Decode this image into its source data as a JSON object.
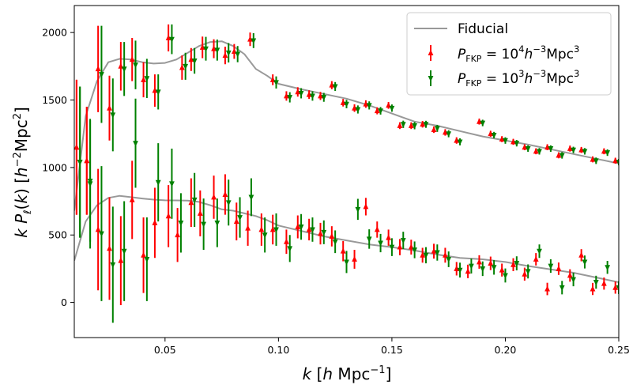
{
  "chart_data": {
    "type": "scatter",
    "xlabel": "k [h Mpc−1]",
    "ylabel": "k Pℓ(k) [h−2Mpc2]",
    "xlim": [
      0.01,
      0.25
    ],
    "ylim": [
      -260,
      2200
    ],
    "xticks": [
      0.05,
      0.1,
      0.15,
      0.2,
      0.25
    ],
    "xtick_labels": [
      "0.05",
      "0.10",
      "0.15",
      "0.20",
      "0.25"
    ],
    "yticks": [
      0,
      500,
      1000,
      1500,
      2000
    ],
    "ytick_labels": [
      "0",
      "500",
      "1000",
      "1500",
      "2000"
    ],
    "grid": false,
    "legend_position": "top-right",
    "colors": {
      "fiducial": "#999999",
      "series1": "#ff0000",
      "series2": "#008000"
    },
    "fiducial": {
      "name": "Fiducial",
      "monopole": {
        "x": [
          0.01,
          0.015,
          0.02,
          0.025,
          0.03,
          0.035,
          0.04,
          0.045,
          0.05,
          0.055,
          0.06,
          0.065,
          0.07,
          0.075,
          0.08,
          0.085,
          0.09,
          0.095,
          0.1,
          0.11,
          0.12,
          0.13,
          0.14,
          0.15,
          0.16,
          0.17,
          0.18,
          0.19,
          0.2,
          0.21,
          0.22,
          0.23,
          0.24,
          0.25
        ],
        "y": [
          680,
          1380,
          1640,
          1780,
          1805,
          1800,
          1780,
          1770,
          1775,
          1800,
          1850,
          1900,
          1930,
          1935,
          1900,
          1840,
          1730,
          1680,
          1620,
          1580,
          1545,
          1510,
          1460,
          1400,
          1340,
          1310,
          1270,
          1230,
          1200,
          1170,
          1135,
          1100,
          1065,
          1030
        ]
      },
      "quadrupole": {
        "x": [
          0.01,
          0.015,
          0.02,
          0.025,
          0.03,
          0.035,
          0.04,
          0.045,
          0.05,
          0.055,
          0.06,
          0.065,
          0.07,
          0.075,
          0.08,
          0.085,
          0.09,
          0.095,
          0.1,
          0.11,
          0.12,
          0.13,
          0.14,
          0.15,
          0.16,
          0.17,
          0.18,
          0.19,
          0.2,
          0.21,
          0.22,
          0.23,
          0.24,
          0.25
        ],
        "y": [
          310,
          600,
          720,
          775,
          790,
          780,
          770,
          762,
          757,
          756,
          755,
          745,
          720,
          690,
          680,
          660,
          640,
          610,
          570,
          530,
          490,
          460,
          430,
          410,
          385,
          355,
          330,
          320,
          300,
          270,
          245,
          220,
          185,
          150
        ]
      }
    },
    "series": [
      {
        "name": "P_FKP = 10^4 h^-3 Mpc^3",
        "monopole": {
          "x": [
            0.011,
            0.0155,
            0.0205,
            0.0255,
            0.0305,
            0.0355,
            0.0405,
            0.0455,
            0.0515,
            0.0575,
            0.0615,
            0.0665,
            0.0715,
            0.0765,
            0.0805,
            0.0875,
            0.0975,
            0.1035,
            0.1085,
            0.1135,
            0.1185,
            0.1235,
            0.1285,
            0.1335,
            0.1385,
            0.1435,
            0.1485,
            0.1535,
            0.1585,
            0.1635,
            0.1685,
            0.1735,
            0.1785,
            0.1885,
            0.1935,
            0.1985,
            0.2035,
            0.2085,
            0.2135,
            0.2185,
            0.2235,
            0.2285,
            0.2335,
            0.2385,
            0.2435,
            0.2485
          ],
          "y": [
            1150,
            1050,
            1730,
            1440,
            1750,
            1800,
            1650,
            1570,
            1960,
            1740,
            1800,
            1890,
            1880,
            1830,
            1860,
            1950,
            1650,
            1530,
            1560,
            1540,
            1530,
            1610,
            1480,
            1440,
            1470,
            1420,
            1460,
            1310,
            1310,
            1320,
            1280,
            1260,
            1200,
            1340,
            1250,
            1210,
            1190,
            1150,
            1120,
            1150,
            1090,
            1140,
            1130,
            1060,
            1120,
            1050
          ],
          "err": [
            500,
            400,
            320,
            240,
            180,
            160,
            130,
            120,
            100,
            90,
            85,
            80,
            70,
            65,
            55,
            50,
            40,
            35,
            35,
            32,
            30,
            30,
            28,
            28,
            28,
            26,
            25,
            25,
            25,
            24,
            24,
            24,
            24,
            22,
            22,
            22,
            22,
            22,
            22,
            22,
            22,
            22,
            22,
            22,
            22,
            22
          ]
        },
        "quadrupole": {
          "x": [
            0.011,
            0.0155,
            0.0205,
            0.0255,
            0.0305,
            0.0355,
            0.0405,
            0.0455,
            0.0515,
            0.0555,
            0.0615,
            0.0655,
            0.0715,
            0.0765,
            0.0815,
            0.0865,
            0.0925,
            0.0975,
            0.1035,
            0.1085,
            0.1135,
            0.1185,
            0.1235,
            0.1285,
            0.1335,
            0.1385,
            0.1435,
            0.1485,
            0.1535,
            0.1585,
            0.1635,
            0.1685,
            0.1735,
            0.1785,
            0.1835,
            0.1885,
            0.1935,
            0.1985,
            0.2035,
            0.2085,
            0.2135,
            0.2185,
            0.2235,
            0.2285,
            0.2335,
            0.2385,
            0.2435,
            0.2485
          ],
          "y": [
            1150,
            1050,
            540,
            400,
            310,
            760,
            350,
            590,
            640,
            500,
            740,
            660,
            780,
            800,
            600,
            550,
            540,
            540,
            450,
            560,
            540,
            510,
            490,
            380,
            320,
            710,
            540,
            480,
            410,
            410,
            350,
            380,
            350,
            250,
            230,
            300,
            290,
            240,
            280,
            210,
            320,
            100,
            250,
            200,
            350,
            100,
            140,
            110
          ],
          "err": [
            500,
            400,
            450,
            380,
            330,
            290,
            280,
            260,
            230,
            200,
            180,
            170,
            160,
            150,
            140,
            130,
            120,
            110,
            90,
            85,
            80,
            80,
            75,
            75,
            70,
            65,
            60,
            60,
            60,
            55,
            55,
            55,
            55,
            50,
            50,
            50,
            50,
            48,
            48,
            48,
            46,
            46,
            46,
            46,
            45,
            45,
            45,
            45
          ]
        }
      },
      {
        "name": "P_FKP = 10^3 h^-3 Mpc^3",
        "monopole": {
          "x": [
            0.0125,
            0.017,
            0.022,
            0.027,
            0.032,
            0.037,
            0.042,
            0.047,
            0.053,
            0.059,
            0.063,
            0.068,
            0.073,
            0.078,
            0.082,
            0.089,
            0.099,
            0.105,
            0.11,
            0.115,
            0.12,
            0.125,
            0.13,
            0.135,
            0.14,
            0.145,
            0.15,
            0.155,
            0.16,
            0.165,
            0.17,
            0.175,
            0.18,
            0.19,
            0.195,
            0.2,
            0.205,
            0.21,
            0.215,
            0.22,
            0.225,
            0.23,
            0.235,
            0.24,
            0.245,
            0.25
          ],
          "y": [
            1040,
            900,
            1690,
            1390,
            1730,
            1760,
            1660,
            1560,
            1950,
            1750,
            1790,
            1880,
            1870,
            1850,
            1840,
            1940,
            1630,
            1520,
            1550,
            1530,
            1520,
            1600,
            1470,
            1430,
            1460,
            1420,
            1440,
            1320,
            1310,
            1320,
            1290,
            1250,
            1190,
            1330,
            1240,
            1200,
            1180,
            1140,
            1120,
            1140,
            1090,
            1130,
            1120,
            1050,
            1110,
            1040
          ],
          "err": [
            560,
            450,
            360,
            270,
            200,
            180,
            145,
            130,
            110,
            100,
            95,
            88,
            78,
            72,
            60,
            55,
            45,
            38,
            38,
            35,
            33,
            33,
            31,
            30,
            30,
            28,
            27,
            27,
            27,
            26,
            26,
            26,
            26,
            24,
            24,
            24,
            24,
            24,
            24,
            24,
            24,
            24,
            24,
            24,
            24,
            24
          ]
        },
        "quadrupole": {
          "x": [
            0.0125,
            0.017,
            0.022,
            0.027,
            0.032,
            0.037,
            0.042,
            0.047,
            0.053,
            0.057,
            0.063,
            0.067,
            0.073,
            0.078,
            0.083,
            0.088,
            0.094,
            0.099,
            0.105,
            0.11,
            0.115,
            0.12,
            0.125,
            0.13,
            0.135,
            0.14,
            0.145,
            0.15,
            0.155,
            0.16,
            0.165,
            0.17,
            0.175,
            0.18,
            0.185,
            0.19,
            0.195,
            0.2,
            0.205,
            0.21,
            0.215,
            0.22,
            0.225,
            0.23,
            0.235,
            0.24,
            0.245,
            0.25
          ],
          "y": [
            1040,
            880,
            510,
            280,
            380,
            1180,
            320,
            890,
            880,
            590,
            760,
            580,
            590,
            740,
            630,
            780,
            500,
            540,
            400,
            560,
            540,
            520,
            450,
            300,
            690,
            470,
            440,
            410,
            460,
            390,
            350,
            370,
            320,
            240,
            270,
            250,
            260,
            200,
            290,
            230,
            380,
            270,
            110,
            170,
            300,
            150,
            260,
            110
          ],
          "err": [
            560,
            480,
            500,
            430,
            370,
            330,
            310,
            290,
            260,
            220,
            200,
            190,
            180,
            170,
            150,
            140,
            130,
            120,
            100,
            95,
            90,
            88,
            84,
            82,
            78,
            72,
            68,
            66,
            64,
            62,
            60,
            60,
            58,
            55,
            55,
            54,
            54,
            52,
            52,
            52,
            50,
            50,
            50,
            50,
            48,
            48,
            48,
            48
          ]
        }
      }
    ]
  }
}
